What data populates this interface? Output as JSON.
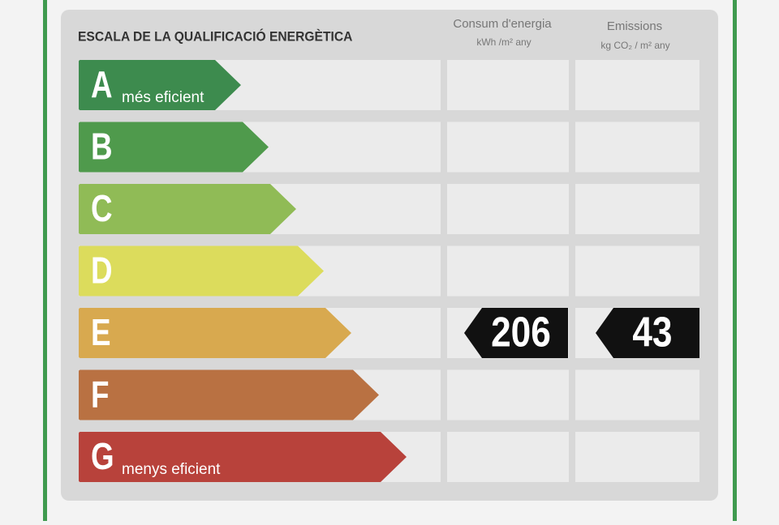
{
  "header": {
    "title": "ESCALA DE LA QUALIFICACIÓ ENERGÈTICA",
    "consumption": {
      "title": "Consum d'energia",
      "unit": "kWh /m² any"
    },
    "emissions": {
      "title": "Emissions",
      "unit": "kg CO₂ / m² any"
    }
  },
  "rows": [
    {
      "letter": "A",
      "label": "més eficient",
      "color": "#3d8b4e"
    },
    {
      "letter": "B",
      "color": "#4f9a4c"
    },
    {
      "letter": "C",
      "color": "#90bb56"
    },
    {
      "letter": "D",
      "color": "#dcdc5c"
    },
    {
      "letter": "E",
      "color": "#d8a94f",
      "consumption": 206,
      "emissions": 43
    },
    {
      "letter": "F",
      "color": "#b97142"
    },
    {
      "letter": "G",
      "label": "menys eficient",
      "color": "#b8423b"
    }
  ]
}
